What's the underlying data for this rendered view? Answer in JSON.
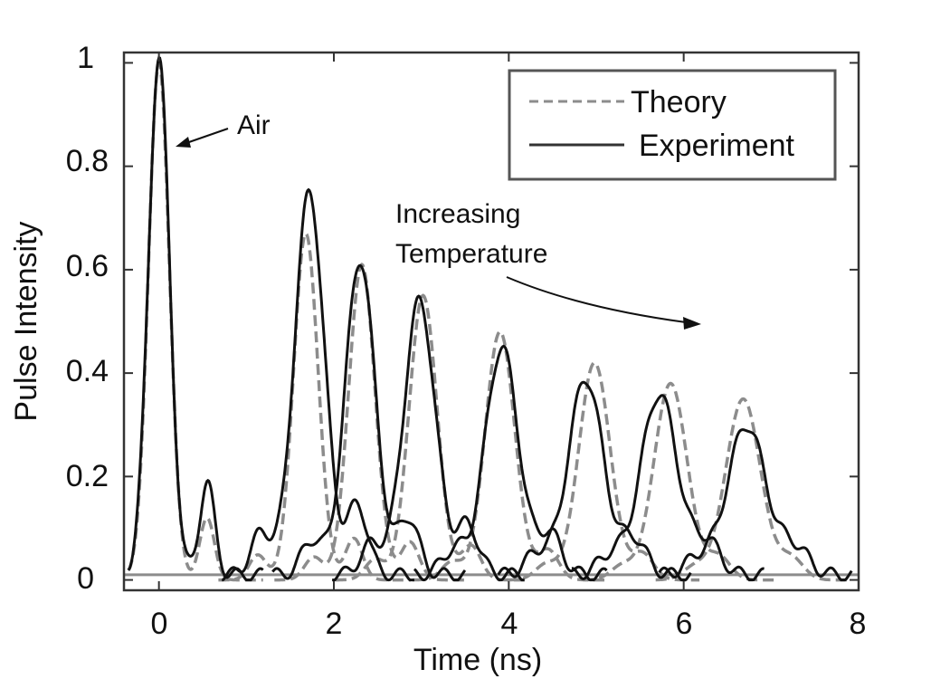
{
  "chart_data": {
    "type": "line",
    "title": "",
    "xlabel": "Time (ns)",
    "ylabel": "Pulse Intensity",
    "xlim": [
      -0.4,
      8
    ],
    "ylim": [
      -0.02,
      1.02
    ],
    "x_ticks": [
      "0",
      "2",
      "4",
      "6",
      "8"
    ],
    "x_tick_values": [
      0,
      2,
      4,
      6,
      8
    ],
    "y_ticks": [
      "0",
      "0.2",
      "0.4",
      "0.6",
      "0.8",
      "1"
    ],
    "y_tick_values": [
      0,
      0.2,
      0.4,
      0.6,
      0.8,
      1
    ],
    "grid": false,
    "box": true,
    "legend": {
      "position": "top-right",
      "entries": [
        {
          "label": "Theory",
          "style": "dashed",
          "color": "#8c8c8c"
        },
        {
          "label": "Experiment",
          "style": "solid",
          "color": "#333333"
        }
      ]
    },
    "annotations": [
      {
        "text": "Air",
        "points_to": [
          0.1,
          0.85
        ]
      },
      {
        "text": "Increasing",
        "line": 1
      },
      {
        "text": "Temperature",
        "line": 2,
        "arrow_to": [
          6.0,
          0.49
        ]
      }
    ],
    "colors": {
      "theory": "#8c8c8c",
      "experiment": "#111111",
      "axes": "#333333"
    },
    "series": [
      {
        "group": "theory",
        "peaks": [
          {
            "center": 0.0,
            "peak": 1.0,
            "width": 0.12
          },
          {
            "center": 1.68,
            "peak": 0.67,
            "width": 0.14
          },
          {
            "center": 2.32,
            "peak": 0.61,
            "width": 0.15
          },
          {
            "center": 3.02,
            "peak": 0.55,
            "width": 0.16
          },
          {
            "center": 3.9,
            "peak": 0.48,
            "width": 0.17
          },
          {
            "center": 4.98,
            "peak": 0.42,
            "width": 0.18
          },
          {
            "center": 5.85,
            "peak": 0.38,
            "width": 0.19
          },
          {
            "center": 6.68,
            "peak": 0.35,
            "width": 0.2
          }
        ]
      },
      {
        "group": "experiment",
        "peaks": [
          {
            "center": 0.0,
            "peak": 1.0,
            "width": 0.12
          },
          {
            "center": 1.72,
            "peak": 0.74,
            "width": 0.17
          },
          {
            "center": 2.3,
            "peak": 0.61,
            "width": 0.17
          },
          {
            "center": 2.98,
            "peak": 0.53,
            "width": 0.18
          },
          {
            "center": 3.92,
            "peak": 0.44,
            "width": 0.19
          },
          {
            "center": 4.88,
            "peak": 0.38,
            "width": 0.2
          },
          {
            "center": 5.72,
            "peak": 0.35,
            "width": 0.21
          },
          {
            "center": 6.72,
            "peak": 0.29,
            "width": 0.22
          }
        ]
      }
    ]
  }
}
